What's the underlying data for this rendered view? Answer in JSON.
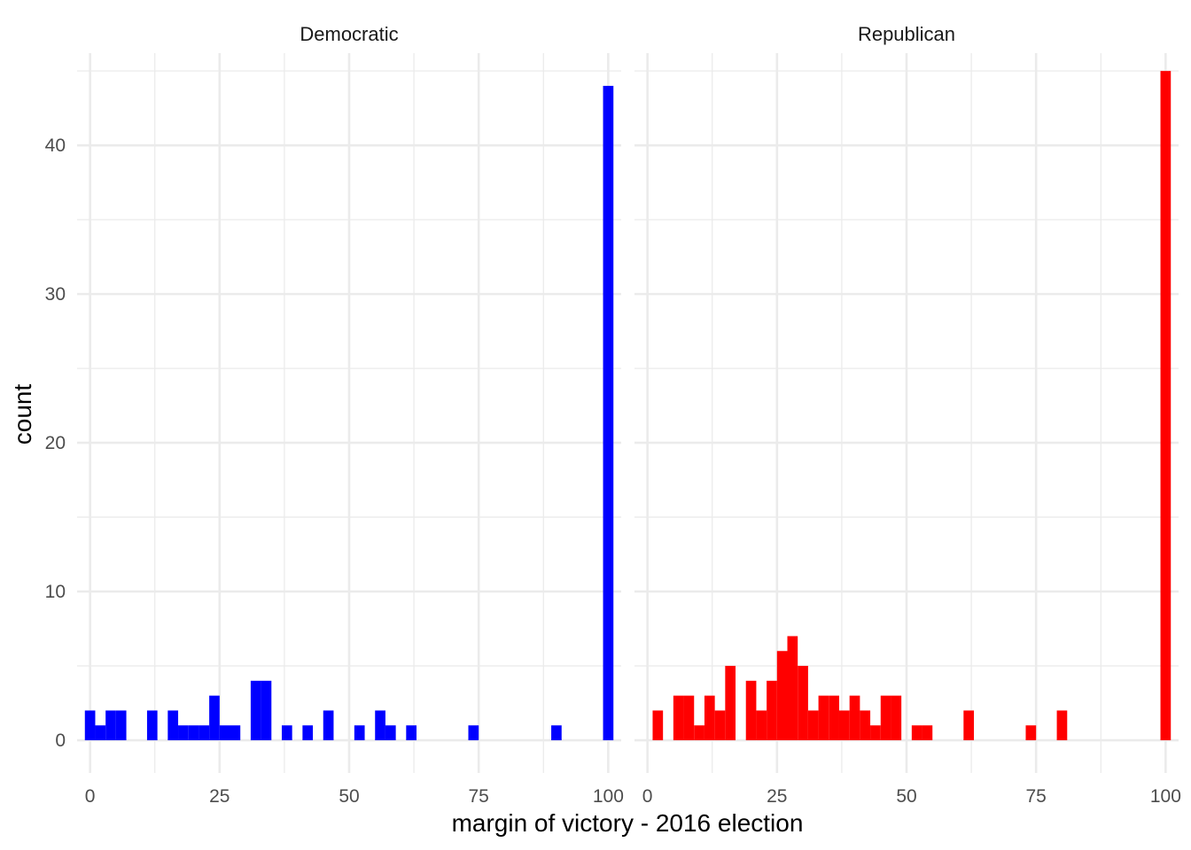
{
  "chart_data": {
    "type": "bar",
    "xlabel": "margin of victory - 2016 election",
    "ylabel": "count",
    "xlim": [
      -2.5,
      102.5
    ],
    "ylim": [
      -2.2,
      46.2
    ],
    "x_ticks": [
      "0",
      "25",
      "50",
      "75",
      "100"
    ],
    "y_ticks": [
      "0",
      "10",
      "20",
      "30",
      "40"
    ],
    "bin_width": 2,
    "grid": true,
    "panels": [
      {
        "name": "Democratic",
        "color": "#0000FF",
        "bins": [
          {
            "x": 0,
            "count": 2
          },
          {
            "x": 2,
            "count": 1
          },
          {
            "x": 4,
            "count": 2
          },
          {
            "x": 6,
            "count": 2
          },
          {
            "x": 12,
            "count": 2
          },
          {
            "x": 16,
            "count": 2
          },
          {
            "x": 18,
            "count": 1
          },
          {
            "x": 20,
            "count": 1
          },
          {
            "x": 22,
            "count": 1
          },
          {
            "x": 24,
            "count": 3
          },
          {
            "x": 26,
            "count": 1
          },
          {
            "x": 28,
            "count": 1
          },
          {
            "x": 32,
            "count": 4
          },
          {
            "x": 34,
            "count": 4
          },
          {
            "x": 38,
            "count": 1
          },
          {
            "x": 42,
            "count": 1
          },
          {
            "x": 46,
            "count": 2
          },
          {
            "x": 52,
            "count": 1
          },
          {
            "x": 56,
            "count": 2
          },
          {
            "x": 58,
            "count": 1
          },
          {
            "x": 62,
            "count": 1
          },
          {
            "x": 74,
            "count": 1
          },
          {
            "x": 90,
            "count": 1
          },
          {
            "x": 100,
            "count": 44
          }
        ]
      },
      {
        "name": "Republican",
        "color": "#FF0000",
        "bins": [
          {
            "x": 2,
            "count": 2
          },
          {
            "x": 6,
            "count": 3
          },
          {
            "x": 8,
            "count": 3
          },
          {
            "x": 10,
            "count": 1
          },
          {
            "x": 12,
            "count": 3
          },
          {
            "x": 14,
            "count": 2
          },
          {
            "x": 16,
            "count": 5
          },
          {
            "x": 20,
            "count": 4
          },
          {
            "x": 22,
            "count": 2
          },
          {
            "x": 24,
            "count": 4
          },
          {
            "x": 26,
            "count": 6
          },
          {
            "x": 28,
            "count": 7
          },
          {
            "x": 30,
            "count": 5
          },
          {
            "x": 32,
            "count": 2
          },
          {
            "x": 34,
            "count": 3
          },
          {
            "x": 36,
            "count": 3
          },
          {
            "x": 38,
            "count": 2
          },
          {
            "x": 40,
            "count": 3
          },
          {
            "x": 42,
            "count": 2
          },
          {
            "x": 44,
            "count": 1
          },
          {
            "x": 46,
            "count": 3
          },
          {
            "x": 48,
            "count": 3
          },
          {
            "x": 52,
            "count": 1
          },
          {
            "x": 54,
            "count": 1
          },
          {
            "x": 62,
            "count": 2
          },
          {
            "x": 74,
            "count": 1
          },
          {
            "x": 80,
            "count": 2
          },
          {
            "x": 100,
            "count": 45
          }
        ]
      }
    ]
  }
}
